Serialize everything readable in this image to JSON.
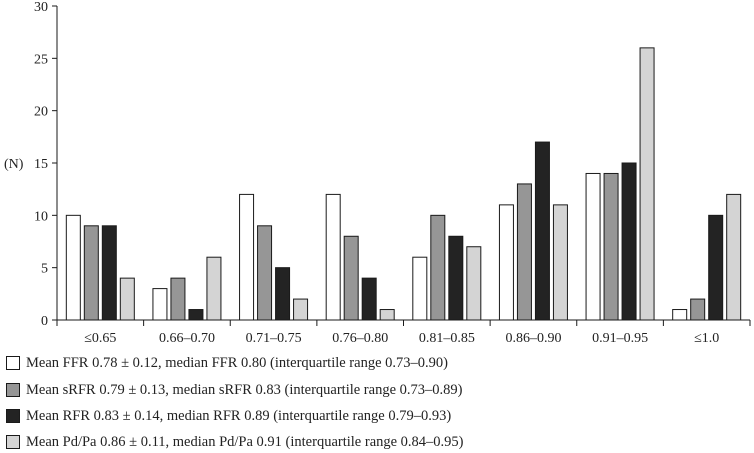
{
  "chart_data": {
    "type": "bar",
    "categories": [
      "≤0.65",
      "0.66–0.70",
      "0.71–0.75",
      "0.76–0.80",
      "0.81–0.85",
      "0.86–0.90",
      "0.91–0.95",
      "≤1.0"
    ],
    "series": [
      {
        "name": "Mean FFR 0.78 ± 0.12, median FFR 0.80 (interquartile range 0.73–0.90)",
        "values": [
          10,
          3,
          12,
          12,
          6,
          11,
          14,
          1
        ],
        "color": "#ffffff"
      },
      {
        "name": "Mean sRFR 0.79 ± 0.13, median sRFR 0.83 (interquartile range 0.73–0.89)",
        "values": [
          9,
          4,
          9,
          8,
          10,
          13,
          14,
          2
        ],
        "color": "#969696"
      },
      {
        "name": "Mean RFR 0.83 ± 0.14, median RFR 0.89 (interquartile range 0.79–0.93)",
        "values": [
          9,
          1,
          5,
          4,
          8,
          17,
          15,
          10
        ],
        "color": "#232323"
      },
      {
        "name": "Mean Pd/Pa 0.86 ± 0.11, median Pd/Pa 0.91 (interquartile range 0.84–0.95)",
        "values": [
          4,
          6,
          2,
          1,
          7,
          11,
          26,
          12
        ],
        "color": "#d4d4d4"
      }
    ],
    "ylabel": "(N)",
    "xlabel": "",
    "title": "",
    "ylim": [
      0,
      30
    ],
    "yticks": [
      0,
      5,
      10,
      15,
      20,
      25,
      30
    ],
    "grid": false,
    "legend_position": "bottom"
  }
}
